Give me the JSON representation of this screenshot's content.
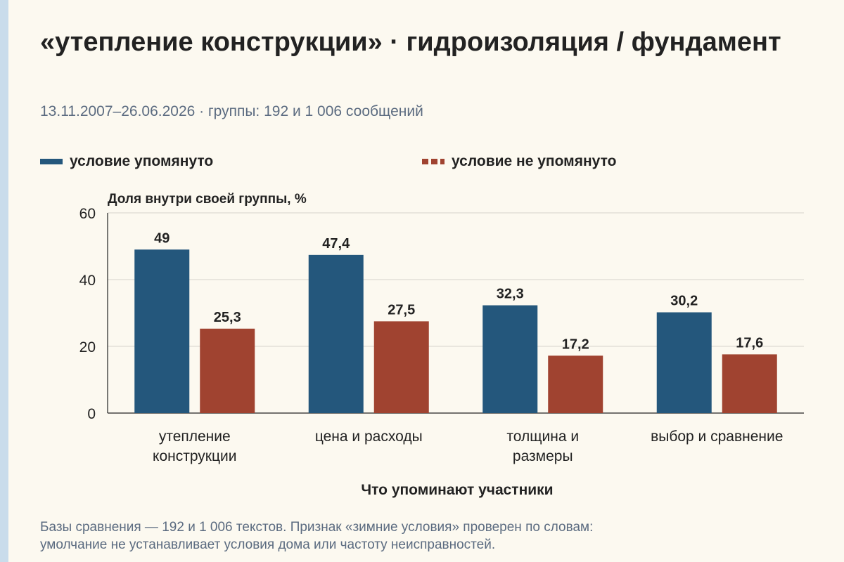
{
  "header": {
    "title": "«утепление конструкции» · гидроизоляция / фундамент",
    "subtitle": "13.11.2007–26.06.2026 · группы: 192 и 1 006 сообщений"
  },
  "colors": {
    "mentioned": "#24577c",
    "not_mentioned": "#a04330"
  },
  "footnote": {
    "line1": "Базы сравнения — 192 и 1 006 текстов. Признак «зимние условия» проверен по словам:",
    "line2": "умолчание не устанавливает условия дома или частоту неисправностей."
  },
  "chart_data": {
    "type": "bar",
    "title": "«утепление конструкции» · гидроизоляция / фундамент",
    "subtitle": "13.11.2007–26.06.2026 · группы: 192 и 1 006 сообщений",
    "ylabel": "Доля внутри своей группы, %",
    "xlabel": "Что упоминают участники",
    "ylim": [
      0,
      60
    ],
    "yticks": [
      "0",
      "20",
      "40",
      "60"
    ],
    "grid": true,
    "legend_position": "top",
    "categories": [
      [
        "утепление",
        "конструкции"
      ],
      [
        "цена и расходы"
      ],
      [
        "толщина и",
        "размеры"
      ],
      [
        "выбор и сравнение"
      ]
    ],
    "series": [
      {
        "name": "условие упомянуто",
        "values": [
          49,
          47.4,
          32.3,
          30.2
        ],
        "labels": [
          "49",
          "47,4",
          "32,3",
          "30,2"
        ],
        "color": "#24577c"
      },
      {
        "name": "условие не упомянуто",
        "values": [
          25.3,
          27.5,
          17.2,
          17.6
        ],
        "labels": [
          "25,3",
          "27,5",
          "17,2",
          "17,6"
        ],
        "color": "#a04330"
      }
    ]
  }
}
